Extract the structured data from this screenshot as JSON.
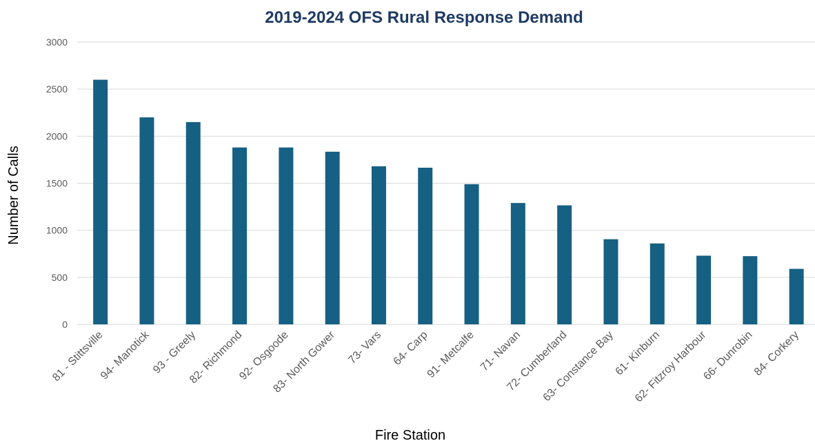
{
  "chart_data": {
    "type": "bar",
    "title": "2019-2024 OFS Rural Response Demand",
    "xlabel": "Fire Station",
    "ylabel": "Number of Calls",
    "ylim": [
      0,
      3000
    ],
    "yticks": [
      0,
      500,
      1000,
      1500,
      2000,
      2500,
      3000
    ],
    "grid": true,
    "legend": "none",
    "categories": [
      "81 - Stittsville",
      "94- Manotick",
      "93 - Greely",
      "82- Richmond",
      "92- Osgoode",
      "83- North Gower",
      "73- Vars",
      "64- Carp",
      "91- Metcalfe",
      "71- Navan",
      "72- Cumberland",
      "63- Constance Bay",
      "61- Kinburn",
      "62- Fitzroy Harbour",
      "66- Dunrobin",
      "84- Corkery"
    ],
    "series": [
      {
        "values": [
          2600,
          2200,
          2150,
          1880,
          1880,
          1835,
          1680,
          1665,
          1490,
          1290,
          1265,
          905,
          860,
          730,
          725,
          590
        ]
      }
    ],
    "colors": {
      "bar": "#166083",
      "title": "#1f3b63",
      "grid": "#d9d9d9",
      "tick_text": "#595959",
      "axis_title": "#000000"
    }
  }
}
